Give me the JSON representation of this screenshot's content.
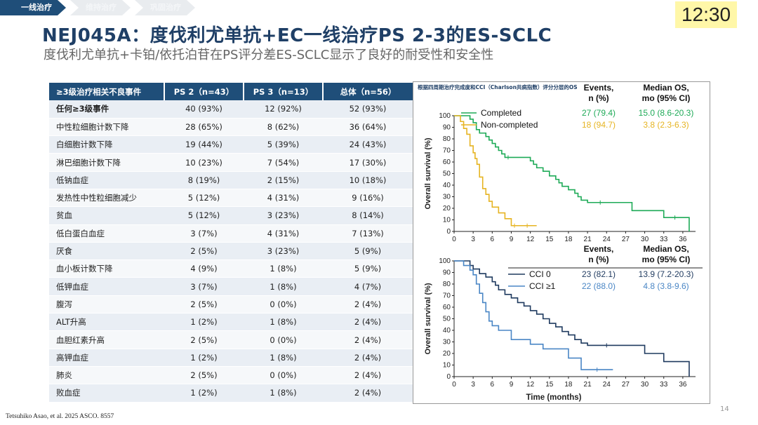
{
  "breadcrumb": [
    "一线治疗",
    "维持治疗",
    "巩固治疗"
  ],
  "clock": "12:30",
  "title": "NEJ045A：度伐利尤单抗+EC一线治疗PS 2-3的ES-SCLC",
  "subtitle": "度伐利尤单抗+卡铂/依托泊苷在PS评分差ES-SCLC显示了良好的耐受性和安全性",
  "table": {
    "headers": [
      "≥3级治疗相关不良事件",
      "PS 2（n=43）",
      "PS 3（n=13）",
      "总体（n=56）"
    ],
    "rows": [
      [
        "任何≥3级事件",
        "40 (93%)",
        "12 (92%)",
        "52 (93%)"
      ],
      [
        "中性粒细胞计数下降",
        "28 (65%)",
        "8 (62%)",
        "36 (64%)"
      ],
      [
        "白细胞计数下降",
        "19 (44%)",
        "5 (39%)",
        "24 (43%)"
      ],
      [
        "淋巴细胞计数下降",
        "10 (23%)",
        "7 (54%)",
        "17 (30%)"
      ],
      [
        "低钠血症",
        "8 (19%)",
        "2 (15%)",
        "10 (18%)"
      ],
      [
        "发热性中性粒细胞减少",
        "5 (12%)",
        "4 (31%)",
        "9 (16%)"
      ],
      [
        "贫血",
        "5 (12%)",
        "3 (23%)",
        "8 (14%)"
      ],
      [
        "低白蛋白血症",
        "3 (7%)",
        "4 (31%)",
        "7 (13%)"
      ],
      [
        "厌食",
        "2 (5%)",
        "3 (23%)",
        "5 (9%)"
      ],
      [
        "血小板计数下降",
        "4 (9%)",
        "1 (8%)",
        "5 (9%)"
      ],
      [
        "低钾血症",
        "3 (7%)",
        "1 (8%)",
        "4 (7%)"
      ],
      [
        "腹泻",
        "2 (5%)",
        "0 (0%)",
        "2 (4%)"
      ],
      [
        "ALT升高",
        "1 (2%)",
        "1 (8%)",
        "2 (4%)"
      ],
      [
        "血胆红素升高",
        "2 (5%)",
        "0 (0%)",
        "2 (4%)"
      ],
      [
        "高钾血症",
        "1 (2%)",
        "1 (8%)",
        "2 (4%)"
      ],
      [
        "肺炎",
        "2 (5%)",
        "0 (0%)",
        "2 (4%)"
      ],
      [
        "败血症",
        "1 (2%)",
        "1 (8%)",
        "2 (4%)"
      ]
    ]
  },
  "colors": {
    "completed": "#1eaa57",
    "noncompleted": "#e6b422",
    "cci0": "#1f3a5f",
    "cci1": "#4a86c5"
  },
  "chart_data": [
    {
      "type": "line",
      "subtype": "kaplan-meier",
      "title": "根据四周期治疗完成度和CCI（Charlson共病指数）评分分层的OS",
      "ylabel": "Overall survival (%)",
      "xlabel": "",
      "xlim": [
        0,
        38
      ],
      "ylim": [
        0,
        100
      ],
      "xticks": [
        0,
        3,
        6,
        9,
        12,
        15,
        18,
        21,
        24,
        27,
        30,
        33,
        36
      ],
      "yticks": [
        0,
        10,
        20,
        30,
        40,
        50,
        60,
        70,
        80,
        90,
        100
      ],
      "col_headers": [
        "Events,",
        "n (%)",
        "Median OS,",
        "mo (95% CI)"
      ],
      "series": [
        {
          "name": "Completed",
          "events": "27 (79.4)",
          "median_os": "15.0 (8.6-20.3)",
          "x": [
            0,
            2.5,
            3,
            3.5,
            4,
            5,
            5.5,
            6,
            6.5,
            7,
            7.5,
            8,
            9,
            12,
            12.5,
            13,
            14,
            15,
            16,
            16.5,
            17,
            18,
            19,
            19.5,
            20,
            21,
            25,
            28,
            33,
            36.5,
            37
          ],
          "y": [
            100,
            97,
            94,
            88,
            85,
            82,
            79,
            76,
            73,
            70,
            67,
            64,
            64,
            61,
            58,
            55,
            52,
            48,
            45,
            42,
            39,
            36,
            33,
            30,
            27,
            25,
            25,
            18,
            12,
            12,
            0
          ]
        },
        {
          "name": "Non-completed",
          "events": "18 (94.7)",
          "median_os": "3.8 (2.3-6.3)",
          "x": [
            0,
            1,
            1.5,
            2,
            2.5,
            3,
            3.3,
            3.6,
            4,
            4.5,
            5,
            5.5,
            6,
            7,
            8,
            9,
            10,
            13
          ],
          "y": [
            100,
            95,
            89,
            84,
            74,
            68,
            63,
            58,
            47,
            37,
            32,
            26,
            21,
            16,
            11,
            5,
            5,
            5
          ]
        }
      ]
    },
    {
      "type": "line",
      "subtype": "kaplan-meier",
      "title": "",
      "ylabel": "Overall survival (%)",
      "xlabel": "Time (months)",
      "xlim": [
        0,
        38
      ],
      "ylim": [
        0,
        100
      ],
      "xticks": [
        0,
        3,
        6,
        9,
        12,
        15,
        18,
        21,
        24,
        27,
        30,
        33,
        36
      ],
      "yticks": [
        0,
        10,
        20,
        30,
        40,
        50,
        60,
        70,
        80,
        90,
        100
      ],
      "col_headers": [
        "Events,",
        "n (%)",
        "Median OS,",
        "mo (95% CI)"
      ],
      "series": [
        {
          "name": "CCI 0",
          "events": "23 (82.1)",
          "median_os": "13.9 (7.2-20.3)",
          "x": [
            0,
            2.5,
            3,
            4,
            5,
            6,
            6.5,
            7,
            8,
            9,
            10,
            11,
            12,
            13,
            14,
            15,
            16,
            17,
            18,
            19,
            20,
            21,
            27,
            30,
            33,
            37
          ],
          "y": [
            100,
            96,
            93,
            89,
            86,
            82,
            79,
            75,
            71,
            68,
            64,
            61,
            57,
            54,
            50,
            46,
            43,
            39,
            36,
            32,
            29,
            27,
            27,
            20,
            13,
            0
          ]
        },
        {
          "name": "CCI ≥1",
          "events": "22 (88.0)",
          "median_os": "4.8 (3.8-9.6)",
          "x": [
            0,
            1.5,
            2.5,
            3,
            3.5,
            4,
            4.5,
            5,
            5.5,
            6,
            7,
            9,
            12,
            14,
            18,
            20,
            25
          ],
          "y": [
            100,
            96,
            92,
            88,
            80,
            72,
            64,
            56,
            48,
            44,
            40,
            32,
            28,
            24,
            16,
            6,
            6
          ]
        }
      ]
    }
  ],
  "footer": {
    "citation": "Tetsuhiko Asao, et al. 2025 ASCO. 8557",
    "page": "14"
  }
}
